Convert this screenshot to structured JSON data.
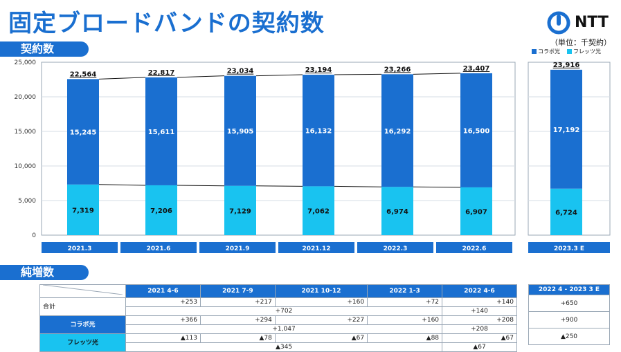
{
  "header": {
    "title": "固定ブロードバンドの契約数",
    "logo": "NTT",
    "unit": "（単位：千契約）"
  },
  "sections": {
    "contracts": "契約数",
    "net_increase": "純増数"
  },
  "colors": {
    "collabo": "#1a6fd0",
    "flets": "#19c3f0",
    "accent": "#1a6fd0"
  },
  "chart_data": {
    "type": "bar",
    "stacked": true,
    "categories": [
      "2021.3",
      "2021.6",
      "2021.9",
      "2021.12",
      "2022.3",
      "2022.6",
      "2023.3 E"
    ],
    "series": [
      {
        "name": "フレッツ光",
        "values": [
          7319,
          7206,
          7129,
          7062,
          6974,
          6907,
          6724
        ]
      },
      {
        "name": "コラボ光",
        "values": [
          15245,
          15611,
          15905,
          16132,
          16292,
          16500,
          17192
        ]
      }
    ],
    "totals": [
      "22,564",
      "22,817",
      "23,034",
      "23,194",
      "23,266",
      "23,407",
      "23,916"
    ],
    "collabo_labels": [
      "15,245",
      "15,611",
      "15,905",
      "16,132",
      "16,292",
      "16,500",
      "17,192"
    ],
    "flets_labels": [
      "7,319",
      "7,206",
      "7,129",
      "7,062",
      "6,974",
      "6,907",
      "6,724"
    ],
    "ylim": [
      0,
      25000
    ],
    "yticks": [
      "0",
      "5,000",
      "10,000",
      "15,000",
      "20,000",
      "25,000"
    ],
    "legend": [
      "コラボ光",
      "フレッツ光"
    ],
    "legend_position": "top-right"
  },
  "table": {
    "periods": [
      "2021 4-6",
      "2021 7-9",
      "2021 10-12",
      "2022 1-3",
      "2022 4-6"
    ],
    "forecast_period": "2022 4 - 2023 3 E",
    "rows": [
      {
        "label": "合計",
        "quarterly": [
          "+253",
          "+217",
          "+160",
          "+72",
          "+140"
        ],
        "fy_total": "+702",
        "current_total": "+140",
        "forecast": "+650"
      },
      {
        "label": "コラボ光",
        "quarterly": [
          "+366",
          "+294",
          "+227",
          "+160",
          "+208"
        ],
        "fy_total": "+1,047",
        "current_total": "+208",
        "forecast": "+900"
      },
      {
        "label": "フレッツ光",
        "quarterly": [
          "▲113",
          "▲78",
          "▲67",
          "▲88",
          "▲67"
        ],
        "fy_total": "▲345",
        "current_total": "▲67",
        "forecast": "▲250"
      }
    ]
  }
}
